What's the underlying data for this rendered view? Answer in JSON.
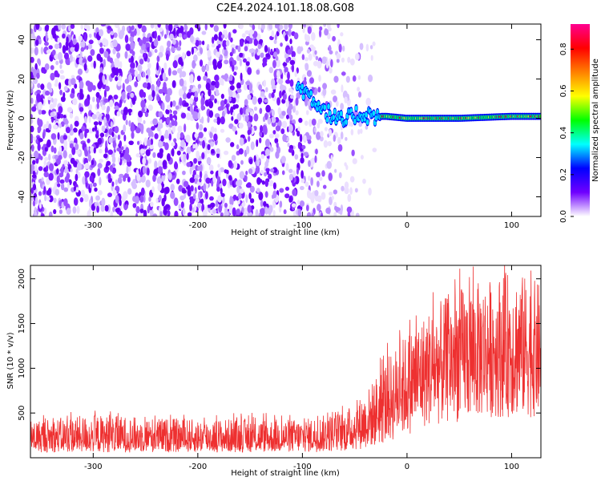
{
  "title": "C2E4.2024.101.18.08.G08",
  "chart_data": [
    {
      "type": "heatmap",
      "xlabel": "Height of straight line (km)",
      "ylabel": "Frequency (Hz)",
      "xlim": [
        -360,
        128
      ],
      "ylim": [
        -50,
        48
      ],
      "xticks": [
        -300,
        -200,
        -100,
        0,
        100
      ],
      "yticks": [
        -40,
        -20,
        0,
        20,
        40
      ],
      "colorbar": {
        "label": "Normalized spectral amplitude",
        "range": [
          0.0,
          0.92
        ],
        "ticks": [
          0.0,
          0.2,
          0.4,
          0.6,
          0.8
        ],
        "colormap": [
          "#ffffff",
          "#7000ff",
          "#0000ff",
          "#00ffff",
          "#00ff00",
          "#ffff00",
          "#ff8000",
          "#ff0000",
          "#ff0090"
        ]
      },
      "noise_region_km": [
        -360,
        -40
      ],
      "signal_track": [
        {
          "x": -100,
          "y": 15
        },
        {
          "x": -90,
          "y": 10
        },
        {
          "x": -80,
          "y": 5
        },
        {
          "x": -70,
          "y": 0
        },
        {
          "x": -60,
          "y": -2
        },
        {
          "x": -50,
          "y": 2
        },
        {
          "x": -40,
          "y": 2
        },
        {
          "x": -30,
          "y": 1
        },
        {
          "x": -20,
          "y": 1
        },
        {
          "x": 0,
          "y": 0
        },
        {
          "x": 50,
          "y": 0
        },
        {
          "x": 100,
          "y": 1
        },
        {
          "x": 128,
          "y": 1
        }
      ]
    },
    {
      "type": "line",
      "xlabel": "Height of straight line (km)",
      "ylabel": "SNR (10 * v/v)",
      "xlim": [
        -360,
        128
      ],
      "ylim": [
        0,
        2150
      ],
      "xticks": [
        -300,
        -200,
        -100,
        0,
        100
      ],
      "yticks": [
        500,
        1000,
        1500,
        2000
      ],
      "series": [
        {
          "color": "#ee3030",
          "envelope": [
            {
              "x": -360,
              "low": 60,
              "mean": 200,
              "high": 420
            },
            {
              "x": -300,
              "low": 60,
              "mean": 210,
              "high": 480
            },
            {
              "x": -250,
              "low": 60,
              "mean": 210,
              "high": 450
            },
            {
              "x": -200,
              "low": 60,
              "mean": 200,
              "high": 430
            },
            {
              "x": -150,
              "low": 60,
              "mean": 200,
              "high": 440
            },
            {
              "x": -100,
              "low": 60,
              "mean": 210,
              "high": 430
            },
            {
              "x": -60,
              "low": 70,
              "mean": 260,
              "high": 520
            },
            {
              "x": -40,
              "low": 100,
              "mean": 380,
              "high": 720
            },
            {
              "x": -20,
              "low": 150,
              "mean": 600,
              "high": 1100
            },
            {
              "x": 0,
              "low": 250,
              "mean": 800,
              "high": 1400
            },
            {
              "x": 20,
              "low": 350,
              "mean": 950,
              "high": 1650
            },
            {
              "x": 50,
              "low": 400,
              "mean": 1100,
              "high": 1900
            },
            {
              "x": 80,
              "low": 450,
              "mean": 1200,
              "high": 2000
            },
            {
              "x": 100,
              "low": 450,
              "mean": 1200,
              "high": 2100
            },
            {
              "x": 128,
              "low": 450,
              "mean": 1180,
              "high": 1950
            }
          ]
        }
      ]
    }
  ]
}
